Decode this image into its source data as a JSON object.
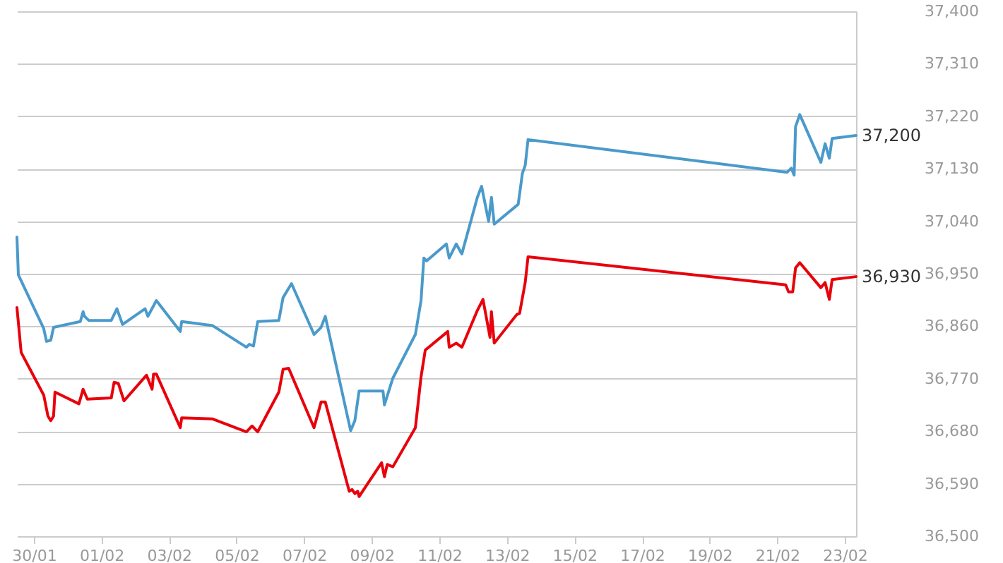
{
  "chart_data": {
    "type": "line",
    "grid": "y",
    "xlim": [
      "--01-29T12:00",
      "--02-23T08:00"
    ],
    "xticks": [
      {
        "value": "--01-30",
        "label": "30/01"
      },
      {
        "value": "--02-01",
        "label": "01/02"
      },
      {
        "value": "--02-03",
        "label": "03/02"
      },
      {
        "value": "--02-05",
        "label": "05/02"
      },
      {
        "value": "--02-07",
        "label": "07/02"
      },
      {
        "value": "--02-09",
        "label": "09/02"
      },
      {
        "value": "--02-11",
        "label": "11/02"
      },
      {
        "value": "--02-13",
        "label": "13/02"
      },
      {
        "value": "--02-15",
        "label": "15/02"
      },
      {
        "value": "--02-17",
        "label": "17/02"
      },
      {
        "value": "--02-19",
        "label": "19/02"
      },
      {
        "value": "--02-21",
        "label": "21/02"
      },
      {
        "value": "--02-23",
        "label": "23/02"
      }
    ],
    "ylim": [
      36500,
      37400
    ],
    "yticks": [
      {
        "value": 36500,
        "label": "36,500"
      },
      {
        "value": 36590,
        "label": "36,590"
      },
      {
        "value": 36680,
        "label": "36,680"
      },
      {
        "value": 36770,
        "label": "36,770"
      },
      {
        "value": 36860,
        "label": "36,860"
      },
      {
        "value": 36950,
        "label": "36,950"
      },
      {
        "value": 37040,
        "label": "37,040"
      },
      {
        "value": 37130,
        "label": "37,130"
      },
      {
        "value": 37220,
        "label": "37,220"
      },
      {
        "value": 37310,
        "label": "37,310"
      },
      {
        "value": 37400,
        "label": "37,400"
      }
    ],
    "annotations": [
      "37,200",
      "36,930"
    ],
    "series": [
      {
        "color": "#4a9acb",
        "x": [
          "--01-29T12:00",
          "--01-29T13:00",
          "--01-30T07:00",
          "--01-30T09:00",
          "--01-30T12:00",
          "--01-30T14:00",
          "--01-31T09:00",
          "--01-31T11:00",
          "--01-31T12:00",
          "--01-31T15:00",
          "--02-01T07:00",
          "--02-01T11:00",
          "--02-01T15:00",
          "--02-02T07:00",
          "--02-02T09:00",
          "--02-02T15:00",
          "--02-03T08:00",
          "--02-03T09:00",
          "--02-04T07:00",
          "--02-05T07:00",
          "--02-05T09:00",
          "--02-05T12:00",
          "--02-05T15:00",
          "--02-06T06:00",
          "--02-06T09:00",
          "--02-06T15:00",
          "--02-07T07:00",
          "--02-07T12:00",
          "--02-07T15:00",
          "--02-08T09:00",
          "--02-08T12:00",
          "--02-08T15:00",
          "--02-09T08:00",
          "--02-09T09:00",
          "--02-09T15:00",
          "--02-10T07:00",
          "--02-10T11:00",
          "--02-10T13:00",
          "--02-10T15:00",
          "--02-11T05:00",
          "--02-11T07:00",
          "--02-11T12:00",
          "--02-11T16:00",
          "--02-12T03:00",
          "--02-12T06:00",
          "--02-12T11:00",
          "--02-12T13:00",
          "--02-12T15:00",
          "--02-13T08:00",
          "--02-13T11:00",
          "--02-13T13:00",
          "--02-13T15:00",
          "--02-21T07:00",
          "--02-21T10:00",
          "--02-21T12:00",
          "--02-21T13:00",
          "--02-21T16:00",
          "--02-22T07:00",
          "--02-22T10:00",
          "--02-22T13:00",
          "--02-22T15:00",
          "--02-23T08:00"
        ],
        "values": [
          37013,
          36948,
          36856,
          36834,
          36836,
          36858,
          36868,
          36885,
          36877,
          36870,
          36870,
          36890,
          36863,
          36890,
          36877,
          36904,
          36851,
          36868,
          36861,
          36824,
          36829,
          36826,
          36868,
          36870,
          36909,
          36933,
          36846,
          36858,
          36877,
          36681,
          36698,
          36749,
          36749,
          36725,
          36771,
          36846,
          36904,
          36977,
          36972,
          37001,
          36977,
          37001,
          36984,
          37081,
          37100,
          37040,
          37081,
          37035,
          37069,
          37122,
          37136,
          37180,
          37124,
          37131,
          37119,
          37202,
          37223,
          37141,
          37173,
          37148,
          37182,
          37187
        ]
      },
      {
        "color": "#e8000b",
        "x": [
          "--01-29T12:00",
          "--01-29T15:00",
          "--01-30T07:00",
          "--01-30T10:00",
          "--01-30T12:00",
          "--01-30T14:00",
          "--01-30T15:00",
          "--01-31T08:00",
          "--01-31T11:00",
          "--01-31T14:00",
          "--02-01T07:00",
          "--02-01T09:00",
          "--02-01T12:00",
          "--02-01T16:00",
          "--02-02T08:00",
          "--02-02T12:00",
          "--02-02T13:00",
          "--02-02T15:00",
          "--02-03T08:00",
          "--02-03T09:00",
          "--02-04T07:00",
          "--02-05T07:00",
          "--02-05T11:00",
          "--02-05T15:00",
          "--02-06T06:00",
          "--02-06T09:00",
          "--02-06T13:00",
          "--02-07T07:00",
          "--02-07T12:00",
          "--02-07T15:00",
          "--02-08T08:00",
          "--02-08T10:00",
          "--02-08T12:00",
          "--02-08T14:00",
          "--02-08T15:00",
          "--02-09T07:00",
          "--02-09T09:00",
          "--02-09T11:00",
          "--02-09T15:00",
          "--02-10T07:00",
          "--02-10T11:00",
          "--02-10T14:00",
          "--02-11T06:00",
          "--02-11T07:00",
          "--02-11T12:00",
          "--02-11T16:00",
          "--02-12T03:00",
          "--02-12T07:00",
          "--02-12T12:00",
          "--02-12T13:00",
          "--02-12T15:00",
          "--02-13T07:00",
          "--02-13T09:00",
          "--02-13T13:00",
          "--02-13T15:00",
          "--02-21T06:00",
          "--02-21T08:00",
          "--02-21T11:00",
          "--02-21T13:00",
          "--02-21T16:00",
          "--02-22T07:00",
          "--02-22T10:00",
          "--02-22T13:00",
          "--02-22T15:00",
          "--02-23T08:00"
        ],
        "values": [
          36892,
          36815,
          36742,
          36706,
          36698,
          36706,
          36747,
          36727,
          36752,
          36735,
          36737,
          36764,
          36762,
          36732,
          36776,
          36752,
          36778,
          36778,
          36686,
          36703,
          36701,
          36679,
          36689,
          36679,
          36747,
          36786,
          36788,
          36686,
          36730,
          36730,
          36577,
          36580,
          36573,
          36577,
          36568,
          36626,
          36602,
          36623,
          36619,
          36686,
          36773,
          36819,
          36851,
          36824,
          36831,
          36824,
          36887,
          36906,
          36841,
          36885,
          36831,
          36880,
          36882,
          36935,
          36979,
          36931,
          36919,
          36919,
          36960,
          36969,
          36926,
          36935,
          36906,
          36940,
          36945
        ]
      }
    ]
  }
}
